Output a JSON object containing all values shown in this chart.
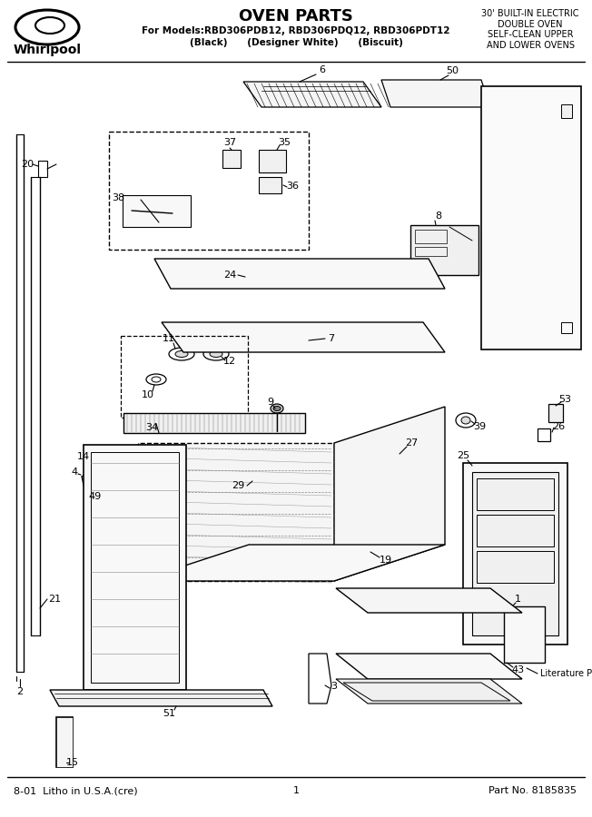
{
  "title": "OVEN PARTS",
  "subtitle_line1": "For Models:RBD306PDB12, RBD306PDQ12, RBD306PDT12",
  "subtitle_line2": "(Black)      (Designer White)      (Biscuit)",
  "right_header": "30' BUILT-IN ELECTRIC\nDOUBLE OVEN\nSELF-CLEAN UPPER\nAND LOWER OVENS",
  "footer_left": "8-01  Litho in U.S.A.(cre)",
  "footer_center": "1",
  "footer_right": "Part No. 8185835",
  "bg_color": "#ffffff",
  "fig_width": 6.52,
  "fig_height": 9.0,
  "dpi": 100
}
